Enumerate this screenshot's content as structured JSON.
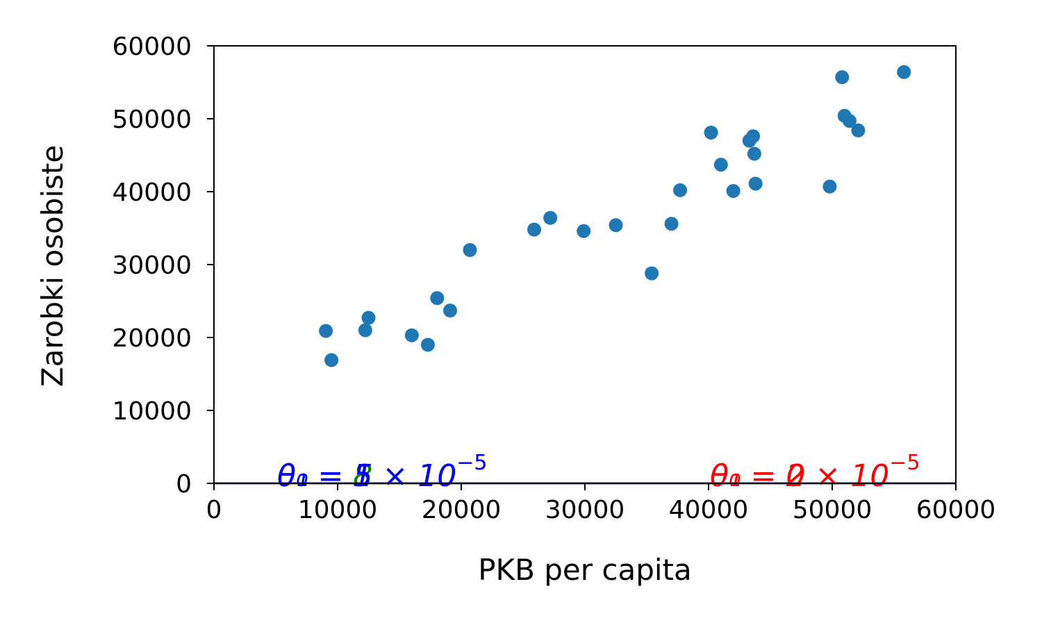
{
  "chart_data": {
    "type": "scatter",
    "xlabel": "PKB per capita",
    "ylabel": "Zarobki osobiste",
    "xlim": [
      0,
      60000
    ],
    "ylim": [
      0,
      60000
    ],
    "xticks": [
      "0",
      "10000",
      "20000",
      "30000",
      "40000",
      "50000",
      "60000"
    ],
    "yticks": [
      "0",
      "10000",
      "20000",
      "30000",
      "40000",
      "50000",
      "60000"
    ],
    "grid": false,
    "point_color": "#1f77b4",
    "points": [
      {
        "x": 9050,
        "y": 20900
      },
      {
        "x": 9500,
        "y": 16900
      },
      {
        "x": 12240,
        "y": 21000
      },
      {
        "x": 12500,
        "y": 22700
      },
      {
        "x": 16000,
        "y": 20300
      },
      {
        "x": 17300,
        "y": 19000
      },
      {
        "x": 18050,
        "y": 25400
      },
      {
        "x": 19100,
        "y": 23700
      },
      {
        "x": 20700,
        "y": 32000
      },
      {
        "x": 25900,
        "y": 34800
      },
      {
        "x": 27200,
        "y": 36400
      },
      {
        "x": 29900,
        "y": 34600
      },
      {
        "x": 32500,
        "y": 35400
      },
      {
        "x": 35400,
        "y": 28800
      },
      {
        "x": 37000,
        "y": 35600
      },
      {
        "x": 37700,
        "y": 40200
      },
      {
        "x": 40200,
        "y": 48100
      },
      {
        "x": 41000,
        "y": 43700
      },
      {
        "x": 42000,
        "y": 40100
      },
      {
        "x": 43300,
        "y": 47000
      },
      {
        "x": 43600,
        "y": 47600
      },
      {
        "x": 43700,
        "y": 45200
      },
      {
        "x": 43800,
        "y": 41100
      },
      {
        "x": 49800,
        "y": 40700
      },
      {
        "x": 50800,
        "y": 55700
      },
      {
        "x": 51000,
        "y": 50400
      },
      {
        "x": 51400,
        "y": 49700
      },
      {
        "x": 52100,
        "y": 48400
      },
      {
        "x": 55800,
        "y": 56400
      }
    ],
    "models": [
      {
        "color": "#ff0000",
        "theta0": 0,
        "theta1": 2e-05
      },
      {
        "color": "#008000",
        "theta0": 8,
        "theta1": 5e-05
      },
      {
        "color": "#0000ff",
        "theta0": 5,
        "theta1": 1e-05
      }
    ],
    "annotations": [
      {
        "color": "#ff0000",
        "x": 40000,
        "y": 0,
        "lines": [
          {
            "lhs": "θ₀ = 0",
            "sup": ""
          },
          {
            "lhs": "θ₁ = 2 × 10",
            "sup": "−5"
          }
        ]
      },
      {
        "color": "#008000",
        "x": 5000,
        "y": 0,
        "lines": [
          {
            "lhs": "θ₀ = 8",
            "sup": ""
          },
          {
            "lhs": "θ₁ = 5 × 10",
            "sup": "−5"
          }
        ]
      },
      {
        "color": "#0000ff",
        "x": 5000,
        "y": 0,
        "lines": [
          {
            "lhs": "θ₀ = 5",
            "sup": ""
          },
          {
            "lhs": "θ₁ = 1 × 10",
            "sup": "−5"
          }
        ]
      }
    ]
  }
}
